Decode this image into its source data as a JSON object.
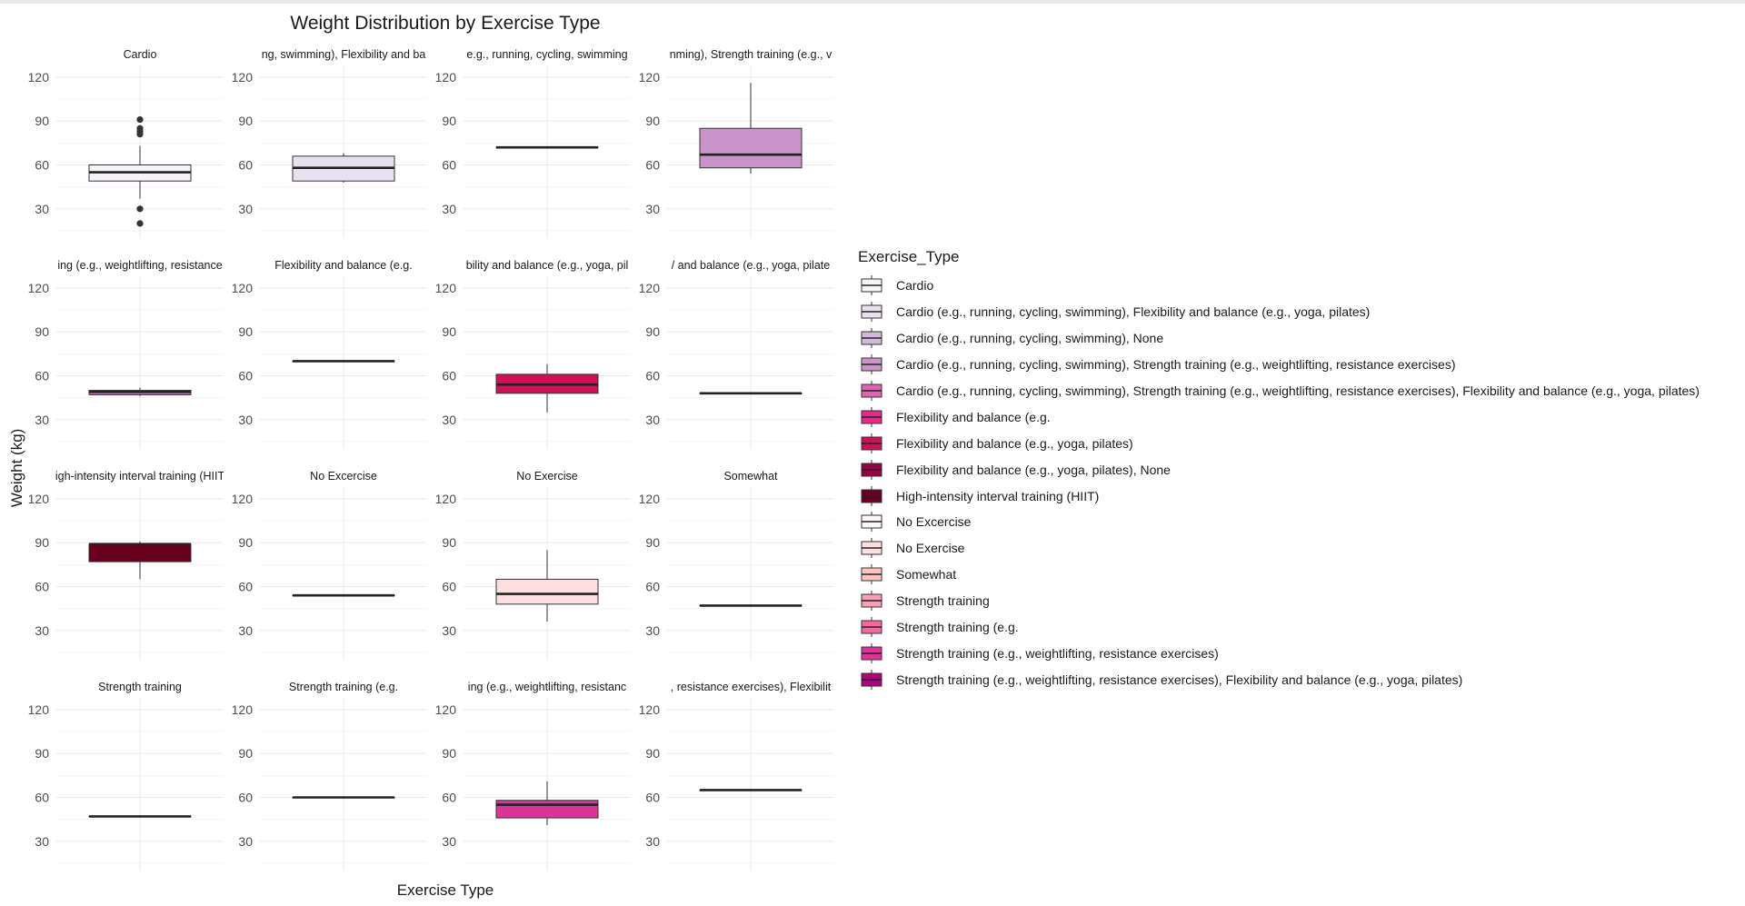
{
  "chart_data": {
    "type": "boxplot",
    "title": "Weight Distribution by Exercise Type",
    "xlabel": "Exercise Type",
    "ylabel": "Weight (kg)",
    "ylim": [
      10,
      128
    ],
    "yticks": [
      30,
      60,
      90,
      120
    ],
    "grid": true,
    "legend_title": "Exercise_Type",
    "legend_position": "right",
    "panels": [
      {
        "strip": "Cardio",
        "fill": "#f7f4f9",
        "q1": 49,
        "median": 55,
        "q3": 60,
        "whisker_low": 37,
        "whisker_high": 73,
        "outliers": [
          91,
          85,
          83,
          81,
          30,
          20
        ]
      },
      {
        "strip": "ng, swimming), Flexibility and ba",
        "fill": "#e7e1ef",
        "q1": 49,
        "median": 58,
        "q3": 66,
        "whisker_low": 48,
        "whisker_high": 68,
        "outliers": []
      },
      {
        "strip": "e.g., running, cycling, swimming",
        "fill": "#d4b9da",
        "q1": 72,
        "median": 72,
        "q3": 72,
        "whisker_low": 72,
        "whisker_high": 72,
        "outliers": []
      },
      {
        "strip": "nming), Strength training (e.g., v",
        "fill": "#c994c7",
        "q1": 58,
        "median": 67,
        "q3": 85,
        "whisker_low": 54,
        "whisker_high": 116,
        "outliers": []
      },
      {
        "strip": "ing (e.g., weightlifting, resistance",
        "fill": "#df65b0",
        "q1": 47,
        "median": 49,
        "q3": 50,
        "whisker_low": 46,
        "whisker_high": 52,
        "outliers": []
      },
      {
        "strip": "Flexibility and balance (e.g.",
        "fill": "#e7298a",
        "q1": 70,
        "median": 70,
        "q3": 70,
        "whisker_low": 70,
        "whisker_high": 70,
        "outliers": []
      },
      {
        "strip": "bility and balance (e.g., yoga, pil",
        "fill": "#ce1256",
        "q1": 48,
        "median": 54,
        "q3": 61,
        "whisker_low": 35,
        "whisker_high": 68,
        "outliers": []
      },
      {
        "strip": "/ and balance (e.g., yoga, pilate",
        "fill": "#980043",
        "q1": 48,
        "median": 48,
        "q3": 48,
        "whisker_low": 48,
        "whisker_high": 48,
        "outliers": []
      },
      {
        "strip": "igh-intensity interval training (HIIT",
        "fill": "#67001f",
        "q1": 77,
        "median": 89,
        "q3": 89,
        "whisker_low": 65,
        "whisker_high": 91,
        "outliers": []
      },
      {
        "strip": "No Excercise",
        "fill": "#fff7f3",
        "q1": 54,
        "median": 54,
        "q3": 54,
        "whisker_low": 54,
        "whisker_high": 54,
        "outliers": []
      },
      {
        "strip": "No Exercise",
        "fill": "#fde0dd",
        "q1": 48,
        "median": 55,
        "q3": 65,
        "whisker_low": 36,
        "whisker_high": 85,
        "outliers": []
      },
      {
        "strip": "Somewhat",
        "fill": "#fcc5c0",
        "q1": 47,
        "median": 47,
        "q3": 47,
        "whisker_low": 47,
        "whisker_high": 47,
        "outliers": []
      },
      {
        "strip": "Strength training",
        "fill": "#fa9fb5",
        "q1": 47,
        "median": 47,
        "q3": 47,
        "whisker_low": 47,
        "whisker_high": 47,
        "outliers": []
      },
      {
        "strip": "Strength training (e.g.",
        "fill": "#f768a1",
        "q1": 60,
        "median": 60,
        "q3": 60,
        "whisker_low": 60,
        "whisker_high": 60,
        "outliers": []
      },
      {
        "strip": "ing (e.g., weightlifting, resistanc",
        "fill": "#dd3497",
        "q1": 46,
        "median": 55,
        "q3": 58,
        "whisker_low": 41,
        "whisker_high": 71,
        "outliers": []
      },
      {
        "strip": ", resistance exercises), Flexibilit",
        "fill": "#ae017e",
        "q1": 65,
        "median": 65,
        "q3": 65,
        "whisker_low": 65,
        "whisker_high": 65,
        "outliers": []
      }
    ],
    "legend": [
      {
        "label": "Cardio",
        "fill": "#f7f4f9"
      },
      {
        "label": "Cardio (e.g., running, cycling, swimming), Flexibility and balance (e.g., yoga, pilates)",
        "fill": "#e7e1ef"
      },
      {
        "label": "Cardio (e.g., running, cycling, swimming), None",
        "fill": "#d4b9da"
      },
      {
        "label": "Cardio (e.g., running, cycling, swimming), Strength training (e.g., weightlifting, resistance exercises)",
        "fill": "#c994c7"
      },
      {
        "label": "Cardio (e.g., running, cycling, swimming), Strength training (e.g., weightlifting, resistance exercises), Flexibility and balance (e.g., yoga, pilates)",
        "fill": "#df65b0"
      },
      {
        "label": "Flexibility and balance (e.g.",
        "fill": "#e7298a"
      },
      {
        "label": "Flexibility and balance (e.g., yoga, pilates)",
        "fill": "#ce1256"
      },
      {
        "label": "Flexibility and balance (e.g., yoga, pilates), None",
        "fill": "#980043"
      },
      {
        "label": "High-intensity interval training (HIIT)",
        "fill": "#67001f"
      },
      {
        "label": "No Excercise",
        "fill": "#fff7f3"
      },
      {
        "label": "No Exercise",
        "fill": "#fde0dd"
      },
      {
        "label": "Somewhat",
        "fill": "#fcc5c0"
      },
      {
        "label": "Strength training",
        "fill": "#fa9fb5"
      },
      {
        "label": "Strength training (e.g.",
        "fill": "#f768a1"
      },
      {
        "label": "Strength training (e.g., weightlifting, resistance exercises)",
        "fill": "#dd3497"
      },
      {
        "label": "Strength training (e.g., weightlifting, resistance exercises), Flexibility and balance (e.g., yoga, pilates)",
        "fill": "#ae017e"
      }
    ]
  }
}
